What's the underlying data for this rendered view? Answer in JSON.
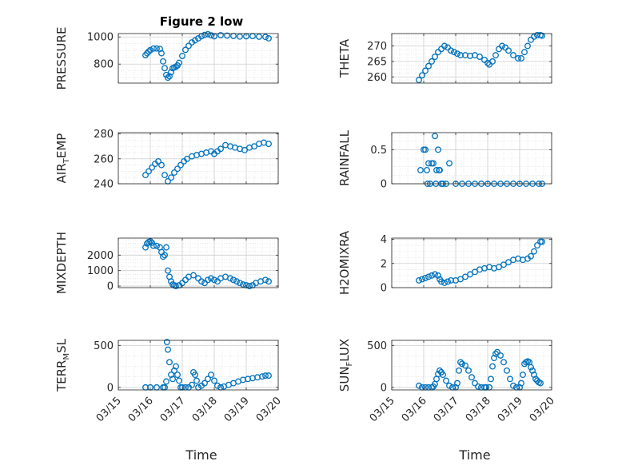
{
  "figure_title": "Figure 2 low",
  "colors": {
    "marker": "#0072BD",
    "grid": "#d9d9d9",
    "axis": "#262626"
  },
  "chart_data": [
    {
      "type": "scatter",
      "ylabel": "PRESSURE",
      "ylim": [
        660,
        1025
      ],
      "yticks": [
        800,
        1000
      ],
      "xlim": [
        "03/15",
        "03/20"
      ],
      "grid": true,
      "x": [
        15.85,
        15.9,
        15.95,
        16.0,
        16.1,
        16.2,
        16.3,
        16.35,
        16.4,
        16.45,
        16.5,
        16.55,
        16.6,
        16.65,
        16.7,
        16.75,
        16.8,
        16.85,
        16.9,
        17.0,
        17.1,
        17.2,
        17.3,
        17.4,
        17.5,
        17.6,
        17.7,
        17.8,
        17.9,
        18.0,
        18.2,
        18.4,
        18.6,
        18.8,
        19.0,
        19.2,
        19.4,
        19.6,
        19.7
      ],
      "y": [
        865,
        880,
        893,
        903,
        915,
        915,
        912,
        880,
        820,
        770,
        720,
        700,
        710,
        740,
        770,
        775,
        780,
        790,
        810,
        860,
        905,
        935,
        960,
        975,
        990,
        1005,
        1015,
        1020,
        1012,
        1005,
        1013,
        1010,
        1007,
        1003,
        1005,
        1006,
        1002,
        1000,
        990
      ]
    },
    {
      "type": "scatter",
      "ylabel": "THETA",
      "ylim": [
        258,
        274
      ],
      "yticks": [
        260,
        265,
        270
      ],
      "xlim": [
        "03/15",
        "03/20"
      ],
      "grid": true,
      "x": [
        15.85,
        15.95,
        16.05,
        16.15,
        16.25,
        16.35,
        16.45,
        16.55,
        16.65,
        16.75,
        16.85,
        16.95,
        17.05,
        17.15,
        17.3,
        17.45,
        17.6,
        17.75,
        17.9,
        18.0,
        18.05,
        18.15,
        18.25,
        18.35,
        18.45,
        18.55,
        18.65,
        18.8,
        18.95,
        19.05,
        19.15,
        19.25,
        19.35,
        19.45,
        19.55,
        19.65,
        19.7
      ],
      "y": [
        259,
        260.5,
        262,
        263.5,
        265,
        266.5,
        268,
        269,
        270,
        269.5,
        268.5,
        268,
        267.5,
        267,
        267,
        266.8,
        267,
        266.5,
        265.5,
        264.5,
        264,
        265,
        267,
        269,
        270,
        269.5,
        268.5,
        267,
        266,
        266,
        268,
        270,
        272,
        273,
        273.5,
        273.5,
        273.3
      ]
    },
    {
      "type": "scatter",
      "ylabel": "AIR_TEMP",
      "ylim": [
        240,
        281
      ],
      "yticks": [
        240,
        260,
        280
      ],
      "xlim": [
        "03/15",
        "03/20"
      ],
      "grid": true,
      "x": [
        15.85,
        15.95,
        16.05,
        16.15,
        16.25,
        16.35,
        16.45,
        16.55,
        16.65,
        16.75,
        16.85,
        16.95,
        17.05,
        17.15,
        17.3,
        17.45,
        17.6,
        17.75,
        17.9,
        18.0,
        18.1,
        18.2,
        18.35,
        18.5,
        18.65,
        18.8,
        18.95,
        19.1,
        19.25,
        19.4,
        19.55,
        19.7
      ],
      "y": [
        247,
        250,
        253,
        256,
        258,
        255,
        247,
        242,
        245,
        249,
        252,
        255,
        258,
        260,
        262,
        263,
        264,
        265,
        266,
        264,
        266,
        268,
        271,
        270,
        269,
        268,
        267,
        269,
        270,
        272,
        273,
        272
      ]
    },
    {
      "type": "scatter",
      "ylabel": "RAINFALL",
      "ylim": [
        0,
        0.75
      ],
      "yticks": [
        0,
        0.5
      ],
      "xlim": [
        "03/15",
        "03/20"
      ],
      "grid": true,
      "x": [
        15.9,
        16.0,
        16.05,
        16.1,
        16.12,
        16.15,
        16.2,
        16.25,
        16.3,
        16.35,
        16.38,
        16.4,
        16.45,
        16.48,
        16.5,
        16.55,
        16.6,
        16.7,
        16.8,
        17.0,
        17.2,
        17.4,
        17.6,
        17.8,
        18.0,
        18.2,
        18.4,
        18.6,
        18.8,
        19.0,
        19.2,
        19.4,
        19.6,
        19.7
      ],
      "y": [
        0.2,
        0.5,
        0.5,
        0.2,
        0,
        0.3,
        0,
        0.3,
        0.3,
        0.7,
        0,
        0.2,
        0.5,
        0.2,
        0.2,
        0,
        0,
        0,
        0.3,
        0,
        0,
        0,
        0,
        0,
        0,
        0,
        0,
        0,
        0,
        0,
        0,
        0,
        0,
        0
      ]
    },
    {
      "type": "scatter",
      "ylabel": "MIXDEPTH",
      "ylim": [
        -100,
        3100
      ],
      "yticks": [
        0,
        1000,
        2000
      ],
      "xlim": [
        "03/15",
        "03/20"
      ],
      "grid": true,
      "x": [
        15.85,
        15.9,
        15.95,
        16.0,
        16.05,
        16.1,
        16.2,
        16.3,
        16.35,
        16.4,
        16.45,
        16.5,
        16.55,
        16.6,
        16.65,
        16.7,
        16.75,
        16.8,
        16.9,
        17.0,
        17.1,
        17.2,
        17.35,
        17.5,
        17.6,
        17.7,
        17.8,
        17.9,
        18.0,
        18.1,
        18.2,
        18.35,
        18.5,
        18.6,
        18.7,
        18.8,
        18.9,
        19.0,
        19.1,
        19.2,
        19.3,
        19.45,
        19.6,
        19.7
      ],
      "y": [
        2500,
        2750,
        2850,
        2900,
        2800,
        2600,
        2600,
        2500,
        2200,
        1900,
        2000,
        2500,
        1000,
        600,
        300,
        100,
        50,
        0,
        50,
        200,
        400,
        600,
        700,
        500,
        300,
        200,
        400,
        500,
        400,
        300,
        500,
        600,
        500,
        400,
        300,
        200,
        100,
        50,
        0,
        50,
        200,
        300,
        400,
        300
      ]
    },
    {
      "type": "scatter",
      "ylabel": "H2OMIXRA",
      "ylim": [
        0,
        4.1
      ],
      "yticks": [
        0,
        2,
        4
      ],
      "xlim": [
        "03/15",
        "03/20"
      ],
      "grid": true,
      "x": [
        15.85,
        15.95,
        16.05,
        16.15,
        16.25,
        16.35,
        16.45,
        16.5,
        16.55,
        16.65,
        16.75,
        16.85,
        17.0,
        17.15,
        17.3,
        17.45,
        17.6,
        17.75,
        17.9,
        18.05,
        18.2,
        18.35,
        18.5,
        18.65,
        18.8,
        18.95,
        19.1,
        19.25,
        19.35,
        19.45,
        19.55,
        19.65,
        19.7
      ],
      "y": [
        0.6,
        0.7,
        0.8,
        0.9,
        1.0,
        1.1,
        1.0,
        0.7,
        0.5,
        0.4,
        0.5,
        0.6,
        0.6,
        0.7,
        0.9,
        1.1,
        1.3,
        1.5,
        1.6,
        1.7,
        1.6,
        1.7,
        1.9,
        2.1,
        2.3,
        2.4,
        2.3,
        2.4,
        2.6,
        3.0,
        3.5,
        3.8,
        3.8
      ]
    },
    {
      "type": "scatter",
      "ylabel": "TERR_MSL",
      "ylim": [
        -30,
        560
      ],
      "yticks": [
        0,
        500
      ],
      "xlim": [
        "03/15",
        "03/20"
      ],
      "grid": true,
      "x": [
        15.85,
        16.0,
        16.2,
        16.4,
        16.45,
        16.5,
        16.52,
        16.55,
        16.6,
        16.65,
        16.7,
        16.75,
        16.8,
        16.85,
        16.9,
        16.95,
        17.0,
        17.1,
        17.2,
        17.3,
        17.35,
        17.4,
        17.45,
        17.5,
        17.6,
        17.7,
        17.8,
        17.9,
        18.0,
        18.1,
        18.2,
        18.3,
        18.45,
        18.6,
        18.75,
        18.9,
        19.05,
        19.2,
        19.35,
        19.5,
        19.6,
        19.7
      ],
      "y": [
        0,
        0,
        0,
        0,
        0,
        70,
        540,
        450,
        300,
        150,
        100,
        200,
        250,
        150,
        80,
        0,
        0,
        0,
        0,
        30,
        180,
        150,
        80,
        0,
        20,
        50,
        100,
        150,
        80,
        20,
        0,
        10,
        30,
        50,
        70,
        90,
        100,
        110,
        120,
        130,
        140,
        140
      ]
    },
    {
      "type": "scatter",
      "ylabel": "SUN_FLUX",
      "ylim": [
        -30,
        560
      ],
      "yticks": [
        0,
        500
      ],
      "xlim": [
        "03/15",
        "03/20"
      ],
      "grid": true,
      "x": [
        15.85,
        15.95,
        16.05,
        16.15,
        16.25,
        16.3,
        16.35,
        16.4,
        16.45,
        16.5,
        16.55,
        16.6,
        16.7,
        16.8,
        16.9,
        17.0,
        17.05,
        17.1,
        17.15,
        17.2,
        17.3,
        17.4,
        17.5,
        17.6,
        17.7,
        17.8,
        17.9,
        17.95,
        18.05,
        18.1,
        18.15,
        18.2,
        18.25,
        18.3,
        18.4,
        18.5,
        18.6,
        18.7,
        18.8,
        18.9,
        19.0,
        19.05,
        19.1,
        19.15,
        19.2,
        19.25,
        19.3,
        19.35,
        19.4,
        19.45,
        19.5,
        19.55,
        19.6,
        19.65
      ],
      "y": [
        20,
        0,
        0,
        0,
        0,
        10,
        40,
        100,
        160,
        200,
        180,
        150,
        80,
        20,
        0,
        0,
        50,
        200,
        300,
        280,
        260,
        200,
        120,
        50,
        10,
        0,
        0,
        0,
        0,
        100,
        250,
        350,
        400,
        420,
        380,
        300,
        200,
        100,
        20,
        0,
        0,
        50,
        150,
        280,
        300,
        310,
        300,
        240,
        200,
        150,
        100,
        80,
        60,
        50
      ]
    }
  ],
  "x_tick_labels": [
    "03/15",
    "03/16",
    "03/17",
    "03/18",
    "03/19",
    "03/20"
  ],
  "x_axis_label": "Time"
}
